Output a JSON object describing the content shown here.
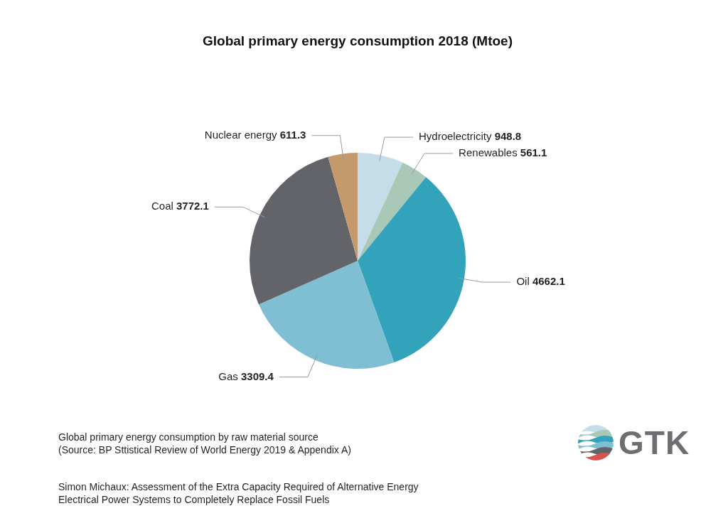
{
  "chart_data": {
    "type": "pie",
    "title": "Global primary energy consumption 2018 (Mtoe)",
    "categories": [
      "Hydroelectricity",
      "Renewables",
      "Oil",
      "Gas",
      "Coal",
      "Nuclear energy"
    ],
    "values": [
      948.8,
      561.1,
      4662.1,
      3309.4,
      3772.1,
      611.3
    ],
    "colors": [
      "#c5dde8",
      "#a9c8b8",
      "#33a3bb",
      "#80bfd3",
      "#636469",
      "#c49a6c"
    ],
    "data_labels": true
  },
  "caption": [
    "Global primary energy consumption by raw material source",
    "(Source: BP Sttistical Review of World Energy 2019 & Appendix A)"
  ],
  "credit": [
    "Simon Michaux: Assessment of the Extra Capacity Required of Alternative Energy",
    "Electrical Power Systems to Completely Replace Fossil Fuels"
  ],
  "logo": "GTK"
}
